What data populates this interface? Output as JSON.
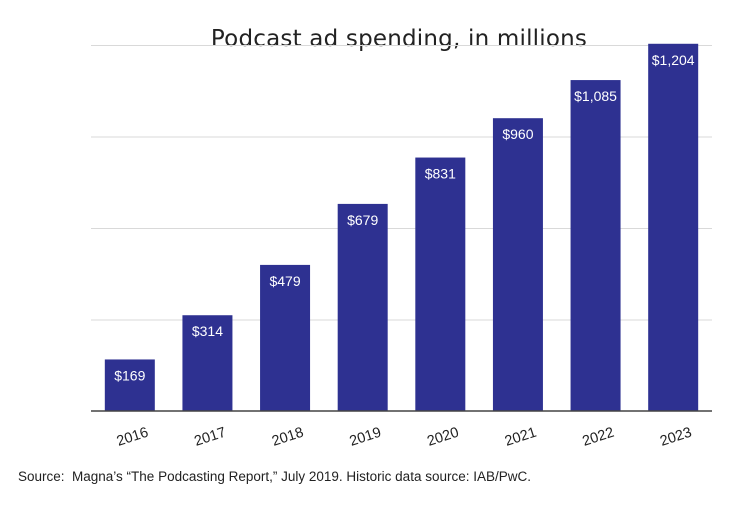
{
  "chart_data": {
    "type": "bar",
    "title": "Podcast ad spending, in millions",
    "categories": [
      "2016",
      "2017",
      "2018",
      "2019",
      "2020",
      "2021",
      "2022",
      "2023"
    ],
    "values": [
      169,
      314,
      479,
      679,
      831,
      960,
      1085,
      1204
    ],
    "data_labels": [
      "$169",
      "$314",
      "$479",
      "$679",
      "$831",
      "$960",
      "$1,085",
      "$1,204"
    ],
    "xlabel": "",
    "ylabel": "",
    "ylim": [
      0,
      1200
    ],
    "grid": true,
    "legend": "none",
    "bar_color": "#2e3191",
    "label_color": "#ffffff",
    "grid_color": "#d9d9d9"
  },
  "footer": {
    "source": "Source:  Magna’s “The Podcasting Report,” July 2019. Historic data source: IAB/PwC."
  }
}
